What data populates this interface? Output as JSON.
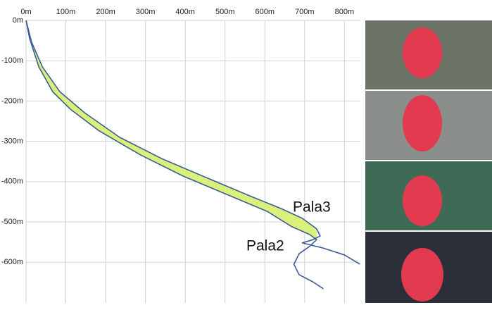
{
  "chart_data": {
    "type": "line",
    "xlim": [
      0,
      840
    ],
    "ylim": [
      -701,
      0
    ],
    "xticks": [
      {
        "value": 0,
        "label": "0m"
      },
      {
        "value": 100,
        "label": "100m"
      },
      {
        "value": 200,
        "label": "200m"
      },
      {
        "value": 300,
        "label": "300m"
      },
      {
        "value": 400,
        "label": "400m"
      },
      {
        "value": 500,
        "label": "500m"
      },
      {
        "value": 600,
        "label": "600m"
      },
      {
        "value": 700,
        "label": "700m"
      },
      {
        "value": 800,
        "label": "800m"
      }
    ],
    "yticks": [
      {
        "value": 0,
        "label": "0m"
      },
      {
        "value": -100,
        "label": "-100m"
      },
      {
        "value": -200,
        "label": "-200m"
      },
      {
        "value": -300,
        "label": "-300m"
      },
      {
        "value": -400,
        "label": "-400m"
      },
      {
        "value": -500,
        "label": "-500m"
      },
      {
        "value": -600,
        "label": "-600m"
      }
    ],
    "grid": true,
    "fill_between": "#d9f07a",
    "series": [
      {
        "name": "Pala3",
        "color": "#3d5c99",
        "x": [
          0,
          14,
          41,
          85,
          147,
          235,
          341,
          465,
          571,
          641,
          694,
          730,
          739,
          721,
          694,
          747,
          800,
          839
        ],
        "values": [
          0,
          -54,
          -115,
          -177,
          -229,
          -290,
          -343,
          -395,
          -439,
          -467,
          -491,
          -517,
          -535,
          -544,
          -552,
          -565,
          -582,
          -605
        ]
      },
      {
        "name": "Pala2",
        "color": "#3d5c99",
        "x": [
          0,
          9,
          32,
          67,
          111,
          182,
          288,
          394,
          500,
          606,
          668,
          712,
          730,
          712,
          686,
          673,
          686,
          721,
          747
        ],
        "values": [
          0,
          -45,
          -115,
          -177,
          -220,
          -273,
          -334,
          -386,
          -430,
          -474,
          -512,
          -531,
          -544,
          -561,
          -579,
          -605,
          -631,
          -649,
          -666
        ]
      }
    ]
  }
}
